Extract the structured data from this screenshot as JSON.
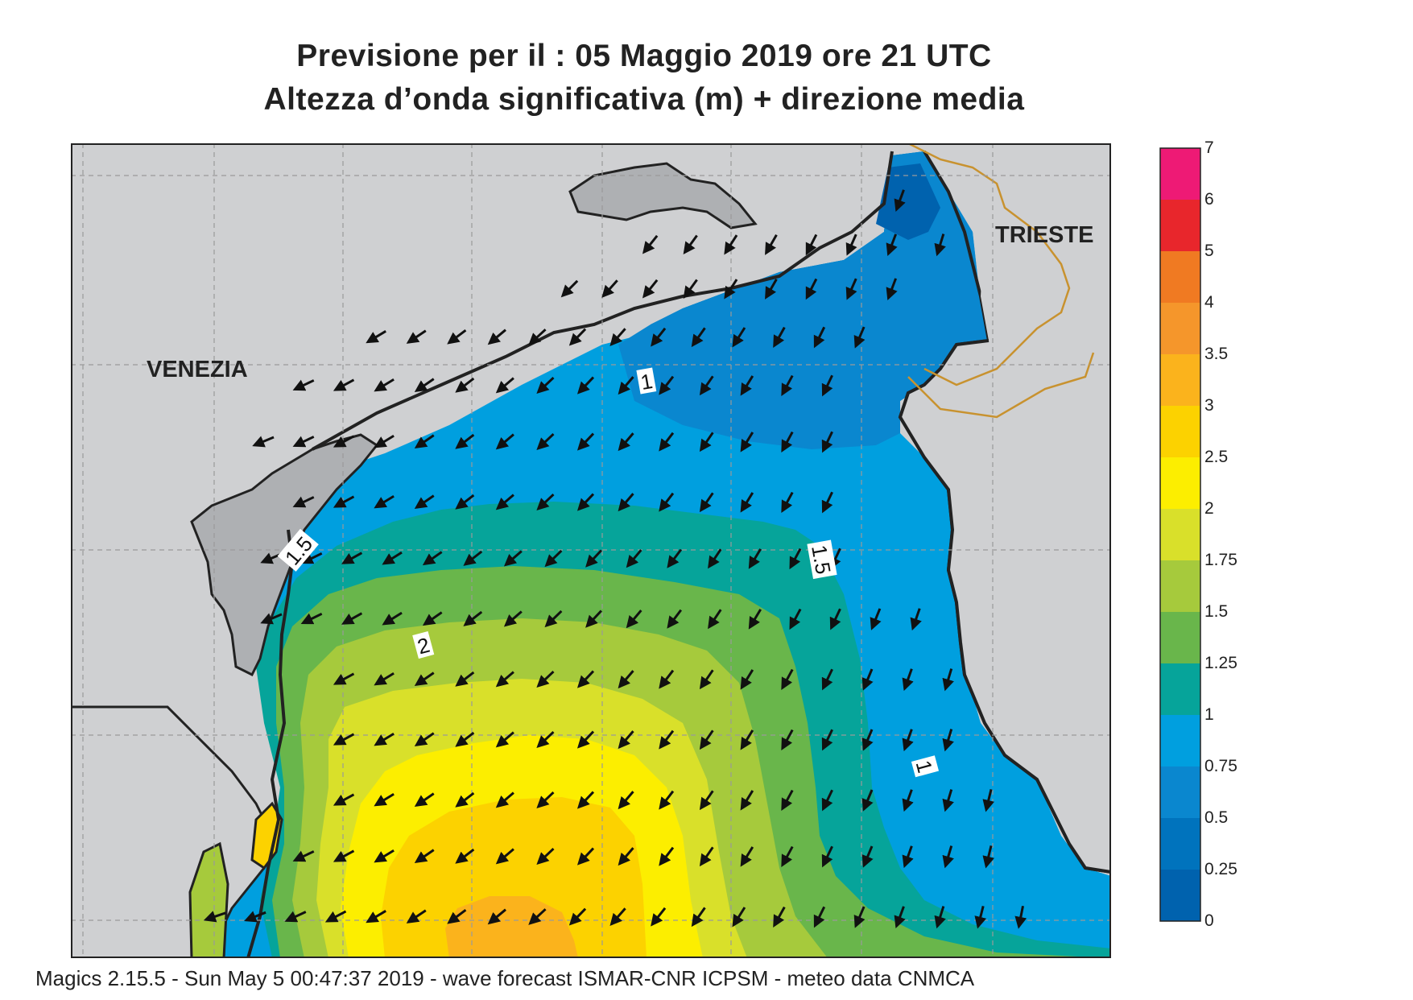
{
  "title_line1": "Previsione per il  :  05   Maggio  2019   ore 21 UTC",
  "title_line2": "Altezza d’onda significativa (m) + direzione media",
  "cities": {
    "venezia": "VENEZIA",
    "trieste": "TRIESTE"
  },
  "contour_labels": [
    "1",
    "1.5",
    "1.5",
    "2",
    "1"
  ],
  "colorbar": {
    "ticks": [
      "7",
      "6",
      "5",
      "4",
      "3.5",
      "3",
      "2.5",
      "2",
      "1.75",
      "1.5",
      "1.25",
      "1",
      "0.75",
      "0.5",
      "0.25",
      "0"
    ],
    "colors": [
      "#ee1a75",
      "#e8262c",
      "#f07a22",
      "#f5962b",
      "#fbb31c",
      "#fcd200",
      "#fcee00",
      "#d9e02a",
      "#a6ca3c",
      "#69b64b",
      "#06a49a",
      "#009fdf",
      "#0a87cf",
      "#0073bd",
      "#0062ae"
    ]
  },
  "colors": {
    "land": "#cfd0d2",
    "coast": "#222222",
    "border": "#c8922f",
    "grid": "#9a9a9a"
  },
  "footer": "Magics 2.15.5 - Sun May  5 00:47:37 2019 - wave forecast  ISMAR-CNR  ICPSM - meteo data   CNMCA"
}
